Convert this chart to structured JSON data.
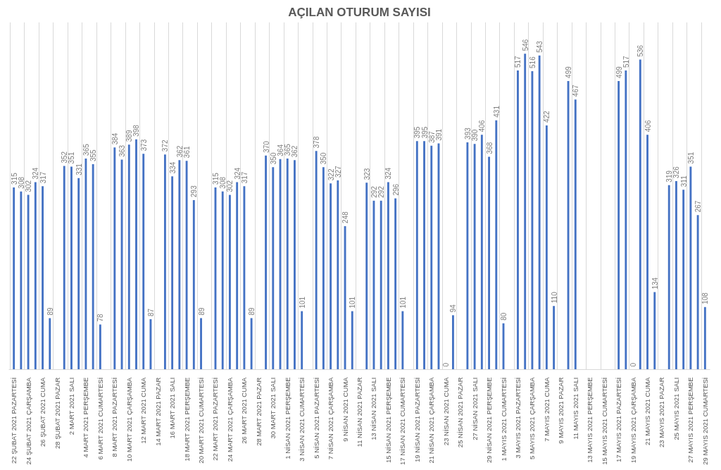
{
  "chart_data": {
    "type": "bar",
    "title": "AÇILAN OTURUM SAYISI",
    "categories": [
      "22 ŞUBAT 2021 PAZARTESİ",
      null,
      "24 ŞUBAT 2021 ÇARŞAMBA",
      null,
      "26 ŞUBAT 2021 CUMA",
      null,
      "28 ŞUBAT 2021 PAZAR",
      null,
      "2 MART 2021 SALI",
      null,
      "4 MART 2021 PERŞEMBE",
      null,
      "6 MART 2021 CUMARTESİ",
      null,
      "8 MART 2021 PAZARTESİ",
      null,
      "10 MART 2021 ÇARŞAMBA",
      null,
      "12 MART 2021 CUMA",
      null,
      "14 MART 2021 PAZAR",
      null,
      "16 MART 2021 SALI",
      null,
      "18 MART 2021 PERŞEMBE",
      null,
      "20 MART 2021 CUMARTESİ",
      null,
      "22 MART 2021 PAZARTESİ",
      null,
      "24 MART 2021 ÇARŞAMBA",
      null,
      "26 MART 2021 CUMA",
      null,
      "28 MART 2021 PAZAR",
      null,
      "30 MART 2021 SALI",
      null,
      "1 NİSAN 2021 PERŞEMBE",
      null,
      "3 NİSAN 2021 CUMARTESİ",
      null,
      "5 NİSAN 2021 PAZARTESİ",
      null,
      "7 NİSAN 2021 ÇARŞAMBA",
      null,
      "9 NİSAN 2021 CUMA",
      null,
      "11 NİSAN 2021 PAZAR",
      null,
      "13 NİSAN 2021 SALI",
      null,
      "15 NİSAN 2021 PERŞEMBE",
      null,
      "17 NİSAN 2021 CUMARTESİ",
      null,
      "19 NİSAN 2021 PAZARTESİ",
      null,
      "21 NİSAN 2021 ÇARŞAMBA",
      null,
      "23 NİSAN 2021 CUMA",
      null,
      "25 NİSAN 2021 PAZAR",
      null,
      "27 NİSAN 2021 SALI",
      null,
      "29 NİSAN 2021 PERŞEMBE",
      null,
      "1 MAYIS 2021 CUMARTESİ",
      null,
      "3 MAYIS 2021 PAZARTESİ",
      null,
      "5 MAYIS 2021 ÇARŞAMBA",
      null,
      "7 MAYIS 2021 CUMA",
      null,
      "9 MAYIS 2021 PAZAR",
      null,
      "11 MAYIS 2021 SALI",
      null,
      "13 MAYIS 2021 PERŞEMBE",
      null,
      "15 MAYIS 2021 CUMARTESİ",
      null,
      "17 MAYIS 2021 PAZARTESİ",
      null,
      "19 MAYIS 2021 ÇARŞAMBA",
      null,
      "21 MAYIS 2021 CUMA",
      null,
      "23 MAYIS 2021 PAZAR",
      null,
      "25 MAYIS 2021 SALI",
      null,
      "27 MAYIS 2021 PERŞEMBE",
      null,
      "29 MAYIS 2021 CUMARTESİ"
    ],
    "values": [
      315,
      308,
      302,
      324,
      317,
      89,
      null,
      352,
      351,
      331,
      365,
      355,
      78,
      null,
      384,
      363,
      389,
      398,
      373,
      87,
      null,
      372,
      334,
      362,
      361,
      293,
      89,
      null,
      315,
      308,
      302,
      324,
      317,
      89,
      null,
      370,
      350,
      364,
      365,
      362,
      101,
      null,
      378,
      350,
      322,
      327,
      248,
      101,
      null,
      323,
      292,
      292,
      324,
      296,
      101,
      null,
      395,
      395,
      387,
      391,
      0,
      94,
      null,
      393,
      390,
      406,
      368,
      431,
      80,
      null,
      517,
      546,
      516,
      543,
      422,
      110,
      null,
      499,
      467,
      null,
      null,
      null,
      null,
      null,
      499,
      517,
      0,
      536,
      406,
      134,
      null,
      319,
      326,
      311,
      351,
      267,
      108
    ],
    "color": "#4472c4",
    "data_labels": true,
    "grid": "x"
  }
}
